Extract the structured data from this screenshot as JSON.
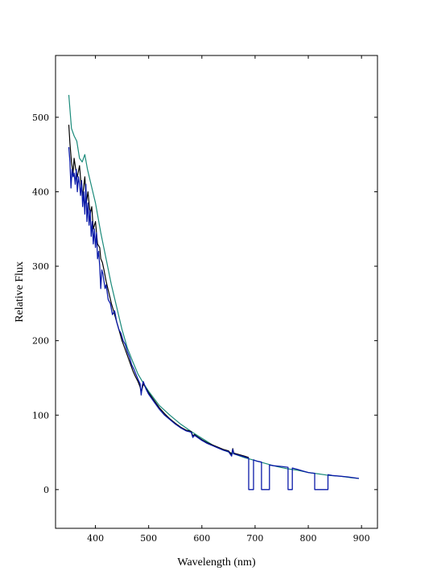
{
  "chart_data": {
    "type": "line",
    "title": "",
    "xlabel": "Wavelength (nm)",
    "ylabel": "Relative Flux",
    "xlim": [
      325,
      930
    ],
    "ylim": [
      -52,
      583
    ],
    "xticks": [
      400,
      500,
      600,
      700,
      800,
      900
    ],
    "yticks": [
      0,
      100,
      200,
      300,
      400,
      500
    ],
    "grid": false,
    "legend": "none",
    "series": [
      {
        "color": "#1a8a7a",
        "x": [
          350,
          355,
          360,
          365,
          370,
          375,
          380,
          385,
          390,
          395,
          400,
          410,
          420,
          430,
          440,
          450,
          460,
          470,
          480,
          490,
          500,
          520,
          540,
          560,
          580,
          600,
          620,
          640,
          660,
          680,
          700,
          720,
          740,
          760,
          780,
          800,
          820,
          840,
          860,
          880,
          895
        ],
        "y": [
          530,
          485,
          475,
          468,
          445,
          440,
          450,
          430,
          415,
          400,
          385,
          345,
          310,
          275,
          245,
          215,
          190,
          172,
          155,
          143,
          132,
          113,
          100,
          88,
          78,
          69,
          60,
          53,
          48,
          43,
          39,
          35,
          31,
          28,
          26,
          23,
          21,
          19,
          18,
          16,
          15
        ]
      },
      {
        "color": "#000000",
        "x": [
          350,
          352,
          355,
          358,
          360,
          363,
          366,
          370,
          373,
          376,
          380,
          383,
          386,
          390,
          393,
          396,
          400,
          404,
          408,
          410,
          413,
          416,
          420,
          425,
          430,
          434,
          438,
          442,
          446,
          450,
          455,
          460,
          465,
          470,
          475,
          480,
          484,
          486,
          490,
          495,
          500,
          510,
          520,
          530,
          540,
          550,
          560,
          570,
          580,
          583,
          586,
          590,
          600,
          610,
          620,
          630,
          640,
          650,
          656,
          658,
          660,
          670,
          680,
          688
        ],
        "y": [
          490,
          465,
          440,
          425,
          445,
          430,
          420,
          435,
          410,
          395,
          420,
          385,
          400,
          370,
          380,
          350,
          360,
          330,
          325,
          310,
          305,
          295,
          280,
          265,
          250,
          240,
          230,
          220,
          210,
          200,
          190,
          180,
          170,
          160,
          152,
          145,
          138,
          130,
          142,
          136,
          130,
          120,
          110,
          102,
          95,
          89,
          84,
          80,
          78,
          72,
          74,
          72,
          67,
          63,
          60,
          57,
          54,
          52,
          47,
          55,
          49,
          47,
          45,
          43
        ]
      },
      {
        "color": "#0a1aa8",
        "x": [
          350,
          352,
          354,
          356,
          358,
          360,
          362,
          364,
          366,
          368,
          370,
          372,
          374,
          376,
          378,
          380,
          382,
          384,
          386,
          388,
          390,
          392,
          394,
          396,
          398,
          400,
          402,
          404,
          406,
          408,
          410,
          412,
          414,
          416,
          418,
          420,
          424,
          428,
          432,
          436,
          440,
          444,
          448,
          452,
          456,
          460,
          464,
          468,
          472,
          476,
          480,
          484,
          486,
          488,
          490,
          495,
          500,
          510,
          520,
          530,
          540,
          550,
          560,
          570,
          580,
          583,
          586,
          590,
          600,
          610,
          620,
          630,
          640,
          650,
          656,
          658,
          660,
          670,
          680,
          688,
          688,
          697,
          697,
          700,
          705,
          712,
          712,
          727,
          727,
          735,
          750,
          762,
          762,
          770,
          770,
          780,
          790,
          800,
          810,
          812,
          812,
          837,
          837,
          845,
          860,
          875,
          895
        ],
        "y": [
          460,
          440,
          405,
          430,
          420,
          425,
          410,
          430,
          400,
          420,
          410,
          395,
          415,
          380,
          400,
          370,
          410,
          360,
          385,
          355,
          375,
          340,
          360,
          330,
          350,
          325,
          345,
          310,
          320,
          300,
          270,
          295,
          290,
          280,
          270,
          275,
          255,
          250,
          235,
          240,
          225,
          215,
          210,
          200,
          195,
          185,
          178,
          168,
          162,
          155,
          148,
          142,
          127,
          140,
          145,
          135,
          128,
          118,
          108,
          100,
          94,
          88,
          83,
          79,
          77,
          70,
          73,
          71,
          66,
          62,
          59,
          56,
          53,
          51,
          45,
          54,
          48,
          46,
          44,
          42,
          0,
          0,
          40,
          39,
          38,
          37,
          0,
          0,
          33,
          32,
          31,
          30,
          0,
          0,
          29,
          27,
          25,
          23,
          22,
          22,
          0,
          0,
          20,
          19,
          18,
          17,
          15
        ]
      }
    ]
  }
}
